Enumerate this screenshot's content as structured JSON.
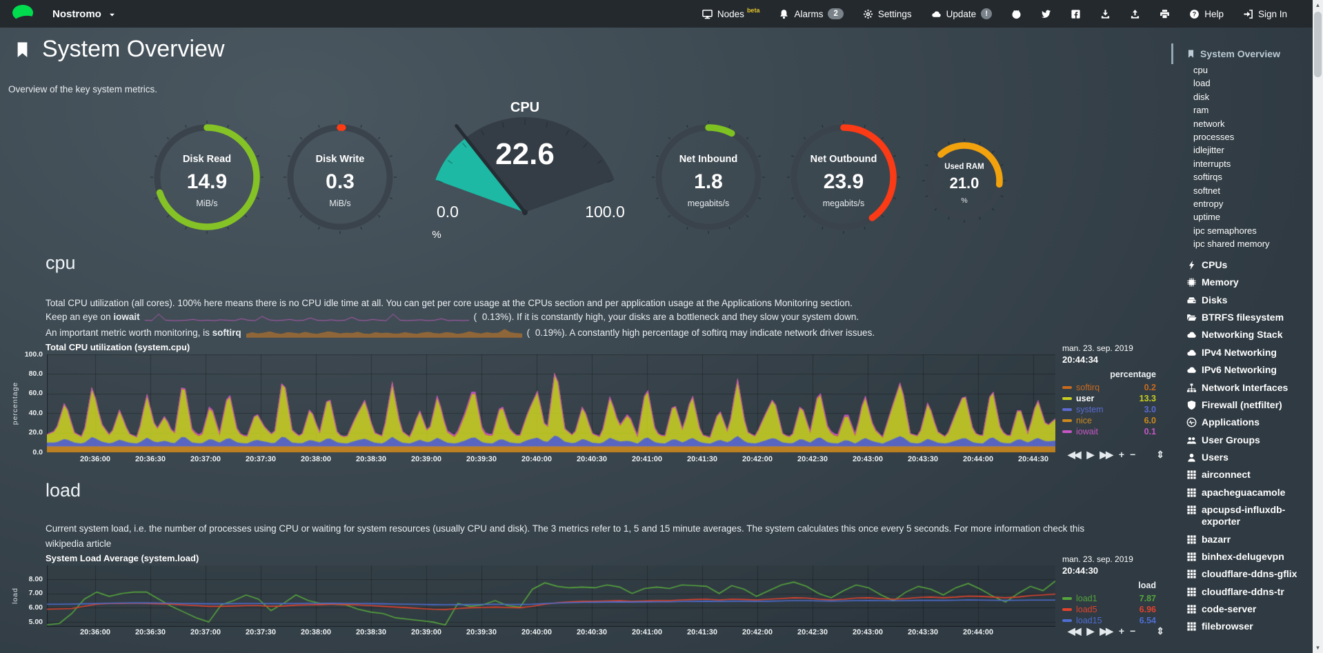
{
  "navbar": {
    "node_name": "Nostromo",
    "nodes_label": "Nodes",
    "nodes_badge": "beta",
    "alarms_label": "Alarms",
    "alarms_badge": "2",
    "settings_label": "Settings",
    "update_label": "Update",
    "update_badge": "!",
    "help_label": "Help",
    "signin_label": "Sign In"
  },
  "header": {
    "title": "System Overview",
    "subtitle": "Overview of the key system metrics."
  },
  "gauges": {
    "rings": [
      {
        "id": "disk-read",
        "label": "Disk Read",
        "value": "14.9",
        "unit": "MiB/s",
        "color": "#85c226",
        "arc_start": 0,
        "arc_sweep": 252,
        "size": 168
      },
      {
        "id": "disk-write",
        "label": "Disk Write",
        "value": "0.3",
        "unit": "MiB/s",
        "color": "#ff3b14",
        "arc_start": 0,
        "arc_sweep": 3,
        "size": 168
      },
      {
        "id": "net-inbound",
        "label": "Net Inbound",
        "value": "1.8",
        "unit": "megabits/s",
        "color": "#7ec222",
        "arc_start": 0,
        "arc_sweep": 28,
        "size": 168
      },
      {
        "id": "net-outbound",
        "label": "Net Outbound",
        "value": "23.9",
        "unit": "megabits/s",
        "color": "#fb3a16",
        "arc_start": 0,
        "arc_sweep": 145,
        "size": 168
      },
      {
        "id": "used-ram",
        "label": "Used RAM",
        "value": "21.0",
        "unit": "%",
        "color": "#f2a20d",
        "arc_start": -42,
        "arc_sweep": 138,
        "size": 126
      }
    ],
    "cpu": {
      "title": "CPU",
      "value": "22.6",
      "value_num": 22.6,
      "min": "0.0",
      "min_num": 0,
      "max": "100.0",
      "max_num": 100,
      "unit": "%",
      "fill_color": "#1db9a4",
      "body_color": "#343d45",
      "needle_color": "#252c33"
    }
  },
  "cpu_section": {
    "heading": "cpu",
    "line1": "Total CPU utilization (all cores). 100% here means there is no CPU idle time at all. You can get per core usage at the CPUs section and per application usage at the Applications Monitoring section.",
    "line2_prefix": "Keep an eye on ",
    "line2_bold": "iowait",
    "paren_open": "(",
    "line2_value": "0.13%",
    "line2_suffix": "). If it is constantly high, your disks are a bottleneck and they slow your system down.",
    "line3_prefix": "An important metric worth monitoring, is ",
    "line3_bold": "softirq",
    "line3_value": "0.19%",
    "line3_suffix": "). A constantly high percentage of softirq may indicate network driver issues.",
    "spark_iowait": [
      0.1,
      0.05,
      0.9,
      0.1,
      0.05,
      0.05,
      0.1,
      0.2,
      0.05,
      0.1,
      0.05,
      0.15,
      0.1,
      0.05,
      0.3,
      0.1,
      0.05,
      0.6,
      0.15,
      0.05,
      0.1,
      0.2,
      0.05,
      0.1,
      0.4,
      0.1,
      0.05,
      0.15,
      0.05,
      0.1,
      0.5,
      0.1,
      0.05,
      0.2,
      0.1,
      0.05,
      0.9,
      0.1,
      0.05,
      0.1,
      0.15,
      0.05,
      0.1,
      0.3,
      0.05,
      0.1,
      0.05,
      0.1
    ],
    "spark_softirq": [
      0.3,
      0.5,
      0.35,
      0.45,
      0.6,
      0.4,
      0.3,
      0.5,
      0.45,
      0.35,
      0.55,
      0.4,
      0.3,
      0.45,
      0.6,
      0.5,
      0.35,
      0.45,
      0.4,
      0.55,
      0.35,
      0.3,
      0.5,
      0.4,
      0.45,
      0.35,
      0.35,
      0.5,
      0.4,
      0.3,
      0.45,
      0.55,
      0.4,
      0.35,
      0.5,
      0.45,
      0.3,
      0.4,
      0.6,
      0.45,
      0.35,
      0.5,
      0.4,
      0.45,
      0.9,
      0.5,
      0.4,
      0.35
    ]
  },
  "load_section": {
    "heading": "load",
    "desc": "Current system load, i.e. the number of processes using CPU or waiting for system resources (usually CPU and disk). The 3 metrics refer to 1, 5 and 15 minute averages. The system calculates this once every 5 seconds. For more information check this",
    "desc_link": "wikipedia article"
  },
  "chart_data": [
    {
      "id": "cpu",
      "type": "area",
      "stacked": true,
      "title": "Total CPU utilization (system.cpu)",
      "ylabel": "percentage",
      "ylim": [
        0,
        100
      ],
      "grid": true,
      "legend_position": "right",
      "yticks": [
        "100.0",
        "80.0",
        "60.0",
        "40.0",
        "20.0",
        "0.0"
      ],
      "xticks": [
        "20:36:00",
        "20:36:30",
        "20:37:00",
        "20:37:30",
        "20:38:00",
        "20:38:30",
        "20:39:00",
        "20:39:30",
        "20:40:00",
        "20:40:30",
        "20:41:00",
        "20:41:30",
        "20:42:00",
        "20:42:30",
        "20:43:00",
        "20:43:30",
        "20:44:00",
        "20:44:30"
      ],
      "date": "man. 23. sep. 2019",
      "time": "20:44:34",
      "legend_header": "percentage",
      "stack_order": [
        "nice",
        "system",
        "user",
        "softirq",
        "iowait"
      ],
      "series": [
        {
          "name": "softirq",
          "color": "#c96a1e",
          "value": "0.2",
          "values": [
            0.2,
            0.2
          ]
        },
        {
          "name": "user",
          "color": "#c8cf22",
          "value": "13.3",
          "highlight": true,
          "values": [
            8,
            12,
            38,
            10,
            6,
            52,
            18,
            7,
            30,
            9,
            6,
            44,
            12,
            25,
            7,
            58,
            11,
            6,
            35,
            8,
            48,
            10,
            6,
            28,
            14,
            7,
            62,
            12,
            6,
            33,
            9,
            45,
            8,
            6,
            24,
            39,
            10,
            7,
            55,
            12,
            6,
            30,
            8,
            43,
            11,
            6,
            26,
            50,
            9,
            7,
            36,
            12,
            6,
            29,
            47,
            8,
            70,
            13,
            7,
            34,
            9,
            6,
            42,
            15,
            27,
            7,
            53,
            10,
            6,
            38,
            12,
            45,
            8,
            6,
            31,
            9,
            58,
            11,
            7,
            25,
            41,
            8,
            6,
            36,
            10,
            49,
            12,
            6,
            28,
            7,
            44,
            13,
            6,
            32,
            56,
            9,
            7,
            38,
            11,
            6,
            27,
            46,
            10,
            7,
            52,
            12,
            6,
            34,
            8,
            40,
            15,
            22
          ]
        },
        {
          "name": "system",
          "color": "#5c6bd3",
          "value": "3.0",
          "values": [
            4,
            4,
            8,
            4,
            3,
            10,
            5,
            3,
            7,
            4,
            3,
            9,
            4,
            6,
            3,
            11,
            4,
            3,
            8,
            4,
            9,
            4,
            3,
            7,
            5,
            3,
            11,
            4,
            3,
            7,
            4,
            9,
            4,
            3,
            6,
            8,
            4,
            3,
            10,
            4,
            3,
            7,
            4,
            9,
            4,
            3,
            6,
            10,
            4,
            3,
            8,
            4,
            3,
            7,
            9,
            4,
            12,
            5,
            3,
            8,
            4,
            3,
            9,
            5,
            6,
            3,
            10,
            4,
            3,
            8,
            4,
            9,
            4,
            3,
            7,
            4,
            11,
            4,
            3,
            6,
            9,
            4,
            3,
            8,
            4,
            10,
            4,
            3,
            7,
            3,
            9,
            5,
            3,
            7,
            11,
            4,
            3,
            8,
            4,
            3,
            6,
            9,
            4,
            3,
            10,
            4,
            3,
            8,
            4,
            9,
            5,
            6
          ]
        },
        {
          "name": "nice",
          "color": "#ce8a1c",
          "value": "6.0",
          "values": [
            6,
            6
          ]
        },
        {
          "name": "iowait",
          "color": "#c557c5",
          "value": "0.1",
          "values": [
            0.1,
            0.1,
            0.1,
            1.5,
            0.1,
            0.1,
            0.1,
            0.1,
            2,
            0.1,
            0.1,
            1,
            0.1,
            0.1,
            0.1,
            1.8,
            0.1,
            0.1,
            0.1,
            0.1
          ]
        }
      ]
    },
    {
      "id": "load",
      "type": "line",
      "stacked": false,
      "title": "System Load Average (system.load)",
      "ylabel": "load",
      "ylim": [
        4.67,
        8.97
      ],
      "grid": true,
      "legend_position": "right",
      "yticks": [
        "8.00",
        "7.00",
        "6.00",
        "5.00"
      ],
      "xticks": [
        "20:36:00",
        "20:36:30",
        "20:37:00",
        "20:37:30",
        "20:38:00",
        "20:38:30",
        "20:39:00",
        "20:39:30",
        "20:40:00",
        "20:40:30",
        "20:41:00",
        "20:41:30",
        "20:42:00",
        "20:42:30",
        "20:43:00",
        "20:43:30",
        "20:44:00"
      ],
      "date": "man. 23. sep. 2019",
      "time": "20:44:30",
      "legend_header": "load",
      "series": [
        {
          "name": "load1",
          "color": "#55a53c",
          "value": "7.87",
          "values": [
            4.8,
            4.9,
            5.6,
            6.6,
            7.1,
            6.8,
            7.0,
            7.1,
            7.1,
            6.6,
            6.1,
            5.7,
            5.3,
            5.0,
            6.2,
            6.5,
            6.9,
            6.6,
            5.8,
            6.3,
            6.9,
            6.5,
            6.3,
            6.25,
            6.2,
            5.9,
            5.7,
            5.6,
            5.3,
            5.2,
            5.1,
            5.0,
            4.8,
            6.3,
            6.1,
            6.2,
            6.5,
            6.15,
            6.05,
            7.3,
            7.75,
            7.5,
            7.4,
            7.45,
            7.4,
            7.6,
            7.45,
            7.0,
            7.35,
            7.45,
            7.35,
            7.6,
            7.55,
            7.5,
            7.0,
            7.55,
            7.3,
            6.8,
            7.2,
            7.6,
            7.8,
            7.5,
            7.0,
            6.7,
            7.2,
            7.6,
            7.4,
            6.9,
            6.5,
            7.1,
            7.5,
            7.3,
            6.9,
            7.4,
            7.7,
            7.3,
            6.8,
            6.4,
            7.0,
            7.5,
            7.2,
            7.87
          ]
        },
        {
          "name": "load5",
          "color": "#e2432d",
          "value": "6.96",
          "values": [
            5.9,
            5.92,
            5.95,
            6.1,
            6.25,
            6.3,
            6.3,
            6.32,
            6.3,
            6.28,
            6.25,
            6.2,
            6.15,
            6.1,
            6.1,
            6.12,
            6.15,
            6.15,
            6.1,
            6.12,
            6.18,
            6.2,
            6.22,
            6.25,
            6.22,
            6.2,
            6.15,
            6.1,
            6.05,
            6.0,
            5.95,
            5.9,
            5.88,
            5.95,
            6.0,
            6.02,
            6.05,
            6.02,
            6.0,
            6.1,
            6.25,
            6.35,
            6.42,
            6.45,
            6.45,
            6.48,
            6.5,
            6.45,
            6.48,
            6.5,
            6.5,
            6.55,
            6.58,
            6.6,
            6.55,
            6.6,
            6.58,
            6.55,
            6.6,
            6.65,
            6.7,
            6.68,
            6.6,
            6.55,
            6.6,
            6.68,
            6.7,
            6.65,
            6.6,
            6.65,
            6.72,
            6.75,
            6.7,
            6.75,
            6.82,
            6.8,
            6.75,
            6.7,
            6.75,
            6.85,
            6.9,
            6.96
          ]
        },
        {
          "name": "load15",
          "color": "#4e6ed2",
          "value": "6.54",
          "values": [
            6.25,
            6.25,
            6.26,
            6.28,
            6.3,
            6.32,
            6.33,
            6.34,
            6.34,
            6.33,
            6.32,
            6.3,
            6.29,
            6.28,
            6.28,
            6.29,
            6.3,
            6.3,
            6.29,
            6.29,
            6.3,
            6.31,
            6.31,
            6.32,
            6.31,
            6.3,
            6.29,
            6.28,
            6.26,
            6.25,
            6.24,
            6.22,
            6.21,
            6.22,
            6.23,
            6.24,
            6.25,
            6.24,
            6.23,
            6.25,
            6.3,
            6.33,
            6.36,
            6.38,
            6.39,
            6.4,
            6.41,
            6.4,
            6.41,
            6.42,
            6.42,
            6.44,
            6.45,
            6.46,
            6.45,
            6.46,
            6.46,
            6.45,
            6.46,
            6.48,
            6.5,
            6.5,
            6.48,
            6.47,
            6.48,
            6.5,
            6.51,
            6.5,
            6.49,
            6.5,
            6.52,
            6.53,
            6.52,
            6.53,
            6.55,
            6.54,
            6.53,
            6.52,
            6.53,
            6.54,
            6.54,
            6.54
          ]
        }
      ]
    }
  ],
  "sidebar": {
    "active": {
      "label": "System Overview",
      "icon": "bookmark"
    },
    "subitems": [
      "cpu",
      "load",
      "disk",
      "ram",
      "network",
      "processes",
      "idlejitter",
      "interrupts",
      "softirqs",
      "softnet",
      "entropy",
      "uptime",
      "ipc semaphores",
      "ipc shared memory"
    ],
    "sections": [
      {
        "label": "CPUs",
        "icon": "bolt"
      },
      {
        "label": "Memory",
        "icon": "microchip"
      },
      {
        "label": "Disks",
        "icon": "hdd"
      },
      {
        "label": "BTRFS filesystem",
        "icon": "folder-open"
      },
      {
        "label": "Networking Stack",
        "icon": "cloud"
      },
      {
        "label": "IPv4 Networking",
        "icon": "cloud"
      },
      {
        "label": "IPv6 Networking",
        "icon": "cloud"
      },
      {
        "label": "Network Interfaces",
        "icon": "sitemap"
      },
      {
        "label": "Firewall (netfilter)",
        "icon": "shield"
      },
      {
        "label": "Applications",
        "icon": "heartbeat"
      },
      {
        "label": "User Groups",
        "icon": "users"
      },
      {
        "label": "Users",
        "icon": "user"
      },
      {
        "label": "airconnect",
        "icon": "grid"
      },
      {
        "label": "apacheguacamole",
        "icon": "grid"
      },
      {
        "label": "apcupsd-influxdb-exporter",
        "icon": "grid"
      },
      {
        "label": "bazarr",
        "icon": "grid"
      },
      {
        "label": "binhex-delugevpn",
        "icon": "grid"
      },
      {
        "label": "cloudflare-ddns-gflix",
        "icon": "grid"
      },
      {
        "label": "cloudflare-ddns-tr",
        "icon": "grid"
      },
      {
        "label": "code-server",
        "icon": "grid"
      },
      {
        "label": "filebrowser",
        "icon": "grid"
      }
    ]
  },
  "toolbar": {
    "backward": "◀◀",
    "play": "▶",
    "forward": "▶▶",
    "zoom_in": "+",
    "zoom_out": "−",
    "resize": "⇕"
  }
}
